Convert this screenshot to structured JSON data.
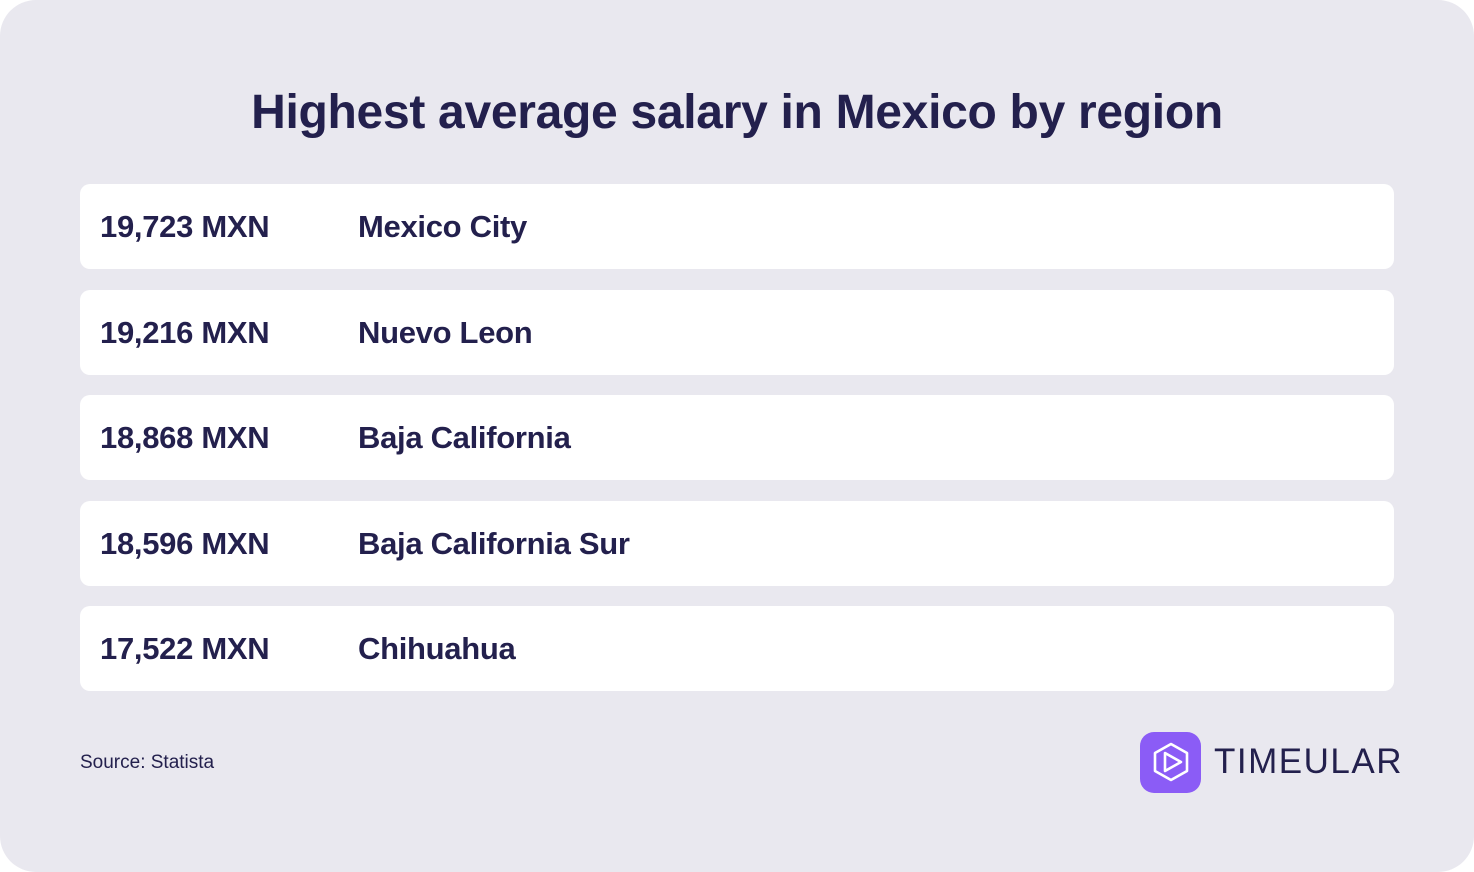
{
  "title": "Highest average salary in Mexico by region",
  "rows": [
    {
      "salary": "19,723 MXN",
      "region": "Mexico City"
    },
    {
      "salary": "19,216 MXN",
      "region": "Nuevo Leon"
    },
    {
      "salary": "18,868 MXN",
      "region": "Baja California"
    },
    {
      "salary": "18,596 MXN",
      "region": "Baja California Sur"
    },
    {
      "salary": "17,522 MXN",
      "region": "Chihuahua"
    }
  ],
  "source": "Source: Statista",
  "brand": {
    "name": "TIMEULAR",
    "logo_icon": "timeular-logo-icon",
    "accent_color": "#8b5cf6"
  },
  "colors": {
    "background": "#e9e8ef",
    "row_background": "#ffffff",
    "text": "#23204d"
  }
}
